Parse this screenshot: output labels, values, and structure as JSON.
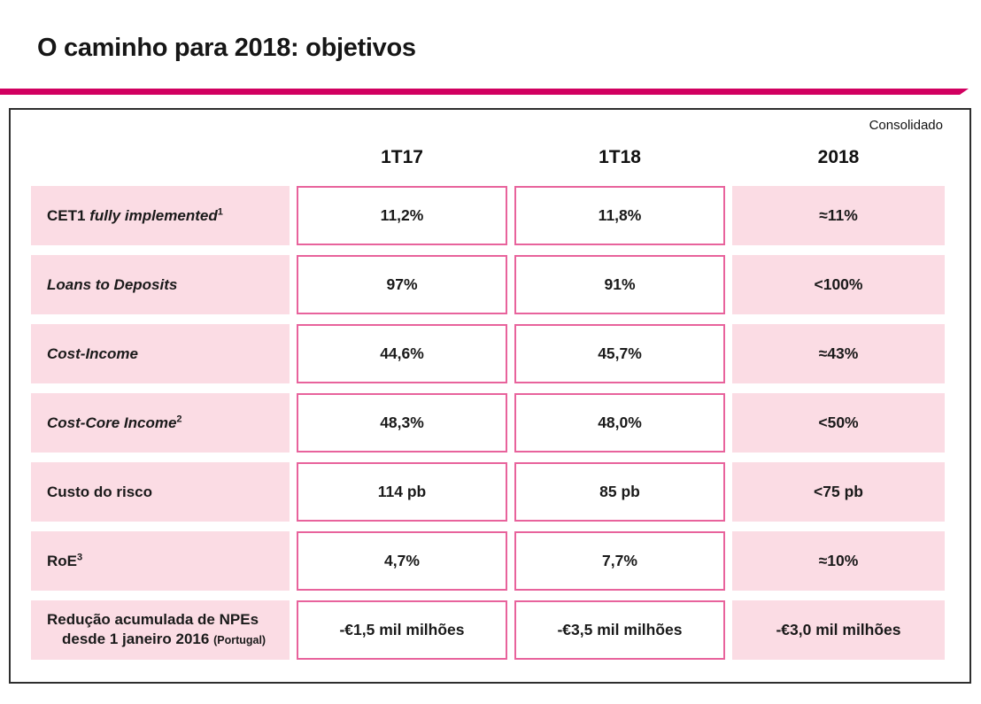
{
  "page": {
    "title": "O caminho para 2018: objetivos"
  },
  "colors": {
    "accent_magenta": "#D10060",
    "row_background_pink": "#FBDCE4",
    "value_box_border_pink": "#E8639C",
    "panel_border": "#2e2e2e"
  },
  "table": {
    "scope_label": "Consolidado",
    "columns": [
      "1T17",
      "1T18",
      "2018"
    ],
    "rows": [
      {
        "label_regular": "CET1 ",
        "label_italic": "fully implemented",
        "footnote": "1",
        "values": [
          "11,2%",
          "11,8%",
          "≈11%"
        ]
      },
      {
        "label_regular": "",
        "label_italic": "Loans to Deposits",
        "footnote": "",
        "values": [
          "97%",
          "91%",
          "<100%"
        ]
      },
      {
        "label_regular": "",
        "label_italic": "Cost-Income",
        "footnote": "",
        "values": [
          "44,6%",
          "45,7%",
          "≈43%"
        ]
      },
      {
        "label_regular": "",
        "label_italic": "Cost-Core Income",
        "footnote": "2",
        "values": [
          "48,3%",
          "48,0%",
          "<50%"
        ]
      },
      {
        "label_regular": "Custo do risco",
        "label_italic": "",
        "footnote": "",
        "values": [
          "114 pb",
          "85 pb",
          "<75 pb"
        ]
      },
      {
        "label_regular": "RoE",
        "label_italic": "",
        "footnote": "3",
        "values": [
          "4,7%",
          "7,7%",
          "≈10%"
        ]
      },
      {
        "label_regular": "Redução acumulada de NPEs",
        "label_italic": "",
        "footnote": "",
        "label_line2": "desde 1 janeiro 2016",
        "label_line2_small": "(Portugal)",
        "values": [
          "-€1,5 mil milhões",
          "-€3,5 mil milhões",
          "-€3,0 mil milhões"
        ]
      }
    ]
  }
}
